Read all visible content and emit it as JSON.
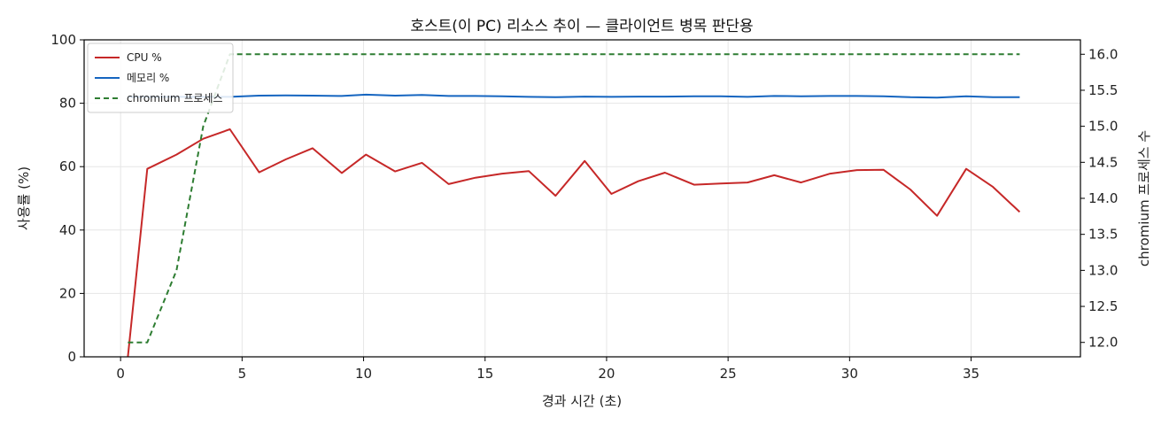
{
  "chart_data": {
    "type": "line",
    "title": "호스트(이 PC) 리소스 추이 — 클라이언트 병목 판단용",
    "xlabel": "경과 시간 (초)",
    "ylabel": "사용률 (%)",
    "y2label": "chromium 프로세스 수",
    "xlim": [
      -1.5,
      39.5
    ],
    "ylim": [
      0,
      100
    ],
    "y2lim": [
      11.8,
      16.2
    ],
    "xticks": [
      0,
      5,
      10,
      15,
      20,
      25,
      30,
      35
    ],
    "yticks": [
      0,
      20,
      40,
      60,
      80,
      100
    ],
    "y2ticks": [
      12.0,
      12.5,
      13.0,
      13.5,
      14.0,
      14.5,
      15.0,
      15.5,
      16.0
    ],
    "grid": true,
    "legend_position": "top-left",
    "series": [
      {
        "name": "CPU %",
        "axis": "left",
        "color": "#c62828",
        "style": "solid",
        "x": [
          0.3,
          1.1,
          2.3,
          3.4,
          4.5,
          5.7,
          6.8,
          7.9,
          9.1,
          10.1,
          11.3,
          12.4,
          13.5,
          14.6,
          15.7,
          16.8,
          17.9,
          19.1,
          20.2,
          21.3,
          22.4,
          23.6,
          24.7,
          25.8,
          26.9,
          28.0,
          29.2,
          30.3,
          31.4,
          32.5,
          33.6,
          34.8,
          35.9,
          37.0
        ],
        "values": [
          0,
          59.3,
          63.8,
          68.8,
          71.8,
          58.2,
          62.3,
          65.8,
          58.0,
          63.8,
          58.5,
          61.2,
          54.5,
          56.5,
          57.8,
          58.6,
          50.8,
          61.8,
          51.4,
          55.4,
          58.1,
          54.3,
          54.7,
          55.0,
          57.3,
          55.0,
          57.8,
          58.9,
          59.0,
          52.8,
          44.5,
          59.3,
          53.6,
          45.7
        ]
      },
      {
        "name": "메모리 %",
        "axis": "left",
        "color": "#1565c0",
        "style": "solid",
        "x": [
          0.3,
          1.1,
          2.3,
          3.4,
          4.5,
          5.7,
          6.8,
          7.9,
          9.1,
          10.1,
          11.3,
          12.4,
          13.5,
          14.6,
          15.7,
          16.8,
          17.9,
          19.1,
          20.2,
          21.3,
          22.4,
          23.6,
          24.7,
          25.8,
          26.9,
          28.0,
          29.2,
          30.3,
          31.4,
          32.5,
          33.6,
          34.8,
          35.9,
          37.0
        ],
        "values": [
          82.0,
          82.0,
          82.0,
          82.0,
          82.0,
          82.4,
          82.5,
          82.4,
          82.3,
          82.7,
          82.4,
          82.6,
          82.3,
          82.3,
          82.2,
          82.0,
          81.9,
          82.1,
          82.0,
          82.1,
          82.1,
          82.2,
          82.2,
          82.0,
          82.3,
          82.2,
          82.3,
          82.3,
          82.2,
          81.9,
          81.8,
          82.2,
          81.9,
          81.9
        ]
      },
      {
        "name": "chromium 프로세스",
        "axis": "right",
        "color": "#2e7d32",
        "style": "dashed",
        "x": [
          0.3,
          1.1,
          2.3,
          3.4,
          4.5,
          5.7,
          6.8,
          7.9,
          9.1,
          10.1,
          11.3,
          12.4,
          13.5,
          14.6,
          15.7,
          16.8,
          17.9,
          19.1,
          20.2,
          21.3,
          22.4,
          23.6,
          24.7,
          25.8,
          26.9,
          28.0,
          29.2,
          30.3,
          31.4,
          32.5,
          33.6,
          34.8,
          35.9,
          37.0
        ],
        "values": [
          12,
          12,
          13,
          15,
          16,
          16,
          16,
          16,
          16,
          16,
          16,
          16,
          16,
          16,
          16,
          16,
          16,
          16,
          16,
          16,
          16,
          16,
          16,
          16,
          16,
          16,
          16,
          16,
          16,
          16,
          16,
          16,
          16,
          16
        ]
      }
    ]
  }
}
